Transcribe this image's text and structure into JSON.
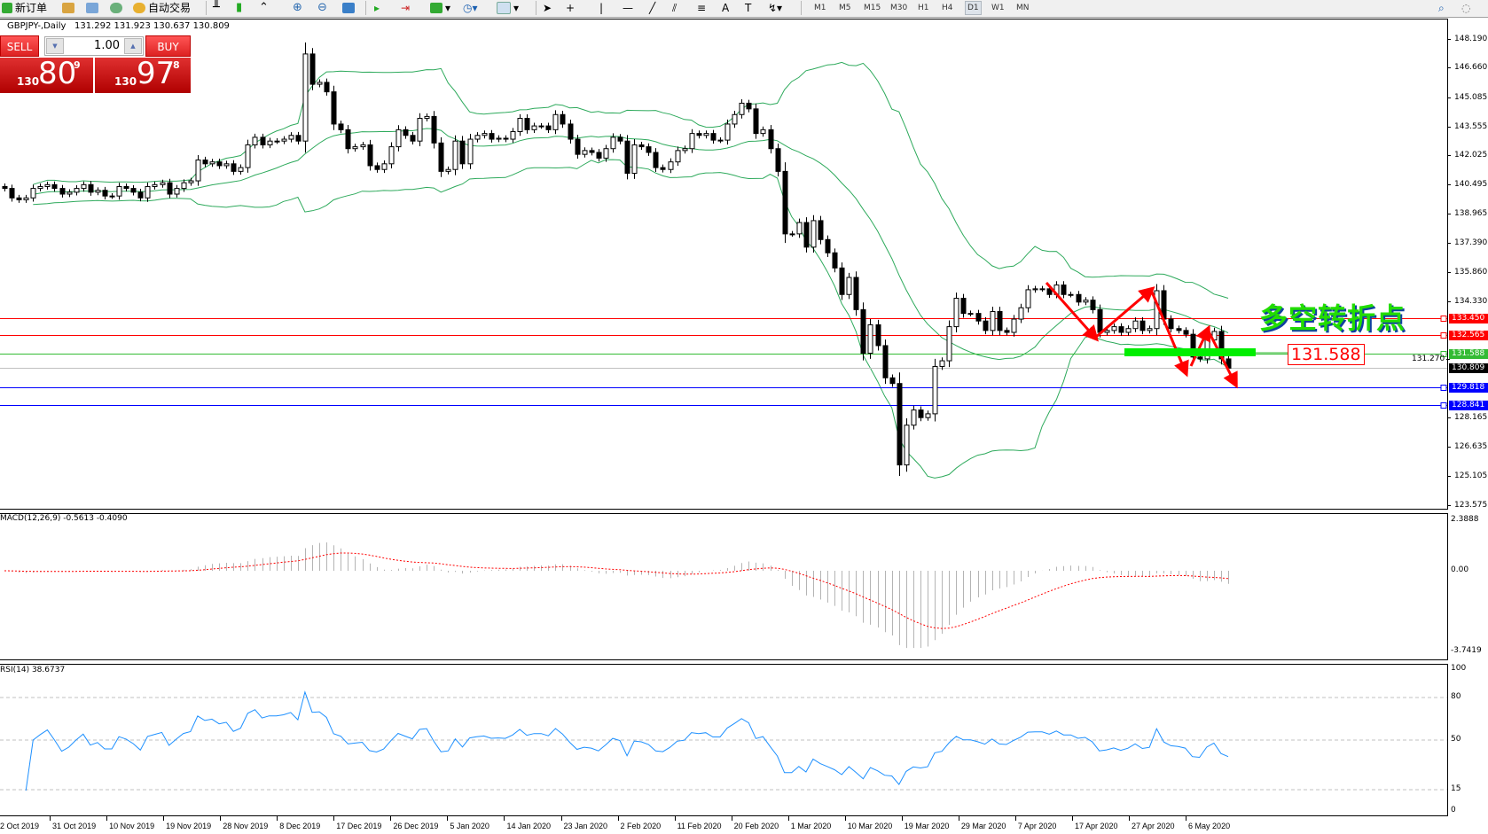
{
  "toolbar": {
    "new_order": "新订单",
    "auto_trading": "自动交易",
    "timeframes": [
      "M1",
      "M5",
      "M15",
      "M30",
      "H1",
      "H4",
      "D1",
      "W1",
      "MN"
    ],
    "active_timeframe": "D1"
  },
  "chart_header": {
    "symbol": "GBPJPY-,Daily",
    "ohlc": "131.292 131.923 130.637 130.809"
  },
  "trade_panel": {
    "sell_label": "SELL",
    "buy_label": "BUY",
    "lot": "1.00",
    "sell_price": {
      "prefix": "130",
      "big": "80",
      "sup": "9"
    },
    "buy_price": {
      "prefix": "130",
      "big": "97",
      "sup": "8"
    }
  },
  "price_axis": {
    "ticks": [
      "148.190",
      "146.660",
      "145.085",
      "143.555",
      "142.025",
      "140.495",
      "138.965",
      "137.390",
      "135.860",
      "134.330",
      "131.270",
      "128.165",
      "126.635",
      "125.105",
      "123.575"
    ]
  },
  "levels": [
    {
      "price": "133.450",
      "color": "#ff0000"
    },
    {
      "price": "132.565",
      "color": "#ff0000"
    },
    {
      "price": "131.588",
      "color": "#33bb33"
    },
    {
      "price": "130.809",
      "color": "#000000",
      "line_color": "#c0c0c0"
    },
    {
      "price": "129.818",
      "color": "#0000ff"
    },
    {
      "price": "128.841",
      "color": "#0000ff"
    }
  ],
  "annotation": {
    "text": "多空转折点",
    "price_label": "131.588",
    "arrow_color": "#ff0000",
    "zone_color": "#00ee00"
  },
  "macd": {
    "label": "MACD(12,26,9) -0.5613 -0.4090",
    "ticks": [
      "2.3888",
      "0.00",
      "-3.7419"
    ]
  },
  "rsi": {
    "label": "RSI(14) 38.6737",
    "ticks": [
      "100",
      "80",
      "50",
      "15",
      "0"
    ]
  },
  "time_axis": {
    "labels": [
      "22 Oct 2019",
      "31 Oct 2019",
      "10 Nov 2019",
      "19 Nov 2019",
      "28 Nov 2019",
      "8 Dec 2019",
      "17 Dec 2019",
      "26 Dec 2019",
      "5 Jan 2020",
      "14 Jan 2020",
      "23 Jan 2020",
      "2 Feb 2020",
      "11 Feb 2020",
      "20 Feb 2020",
      "1 Mar 2020",
      "10 Mar 2020",
      "19 Mar 2020",
      "29 Mar 2020",
      "7 Apr 2020",
      "17 Apr 2020",
      "27 Apr 2020",
      "6 May 2020"
    ]
  },
  "chart_data": {
    "type": "candlestick",
    "symbol": "GBPJPY",
    "timeframe": "Daily",
    "ylim": [
      123.575,
      148.19
    ],
    "close": [
      140.3,
      139.8,
      139.7,
      139.8,
      140.3,
      140.4,
      140.5,
      140.3,
      140.0,
      140.1,
      140.3,
      140.5,
      140.1,
      140.2,
      139.9,
      139.9,
      140.4,
      140.3,
      140.1,
      139.8,
      140.4,
      140.5,
      140.6,
      140.0,
      140.3,
      140.6,
      140.7,
      141.8,
      141.6,
      141.7,
      141.5,
      141.6,
      141.2,
      141.4,
      142.6,
      143.0,
      142.6,
      142.8,
      142.8,
      142.9,
      143.1,
      142.8,
      147.4,
      145.8,
      145.9,
      145.4,
      143.7,
      143.4,
      142.4,
      142.5,
      142.6,
      141.5,
      141.3,
      141.6,
      142.5,
      143.4,
      143.1,
      142.8,
      144.0,
      144.1,
      142.7,
      141.2,
      141.3,
      142.8,
      141.6,
      142.9,
      143.1,
      143.2,
      142.9,
      142.95,
      142.9,
      143.3,
      144.0,
      143.4,
      143.6,
      143.6,
      143.4,
      144.2,
      143.7,
      142.9,
      142.1,
      142.3,
      142.2,
      141.9,
      142.4,
      143.0,
      142.8,
      141.1,
      142.6,
      142.5,
      142.2,
      141.4,
      141.3,
      141.7,
      142.3,
      142.4,
      143.2,
      143.1,
      143.2,
      142.85,
      142.85,
      143.7,
      144.2,
      144.8,
      144.5,
      143.2,
      143.4,
      142.4,
      141.2,
      137.9,
      137.9,
      138.5,
      137.2,
      138.6,
      137.6,
      136.9,
      136.1,
      134.7,
      135.6,
      133.9,
      131.6,
      133.1,
      132.0,
      130.3,
      130.0,
      125.7,
      127.8,
      128.6,
      128.2,
      128.4,
      130.9,
      131.2,
      133.0,
      134.5,
      133.7,
      133.7,
      133.3,
      132.8,
      133.8,
      132.8,
      132.7,
      133.4,
      134.0,
      134.95,
      135.0,
      135.0,
      134.7,
      135.2,
      134.7,
      134.7,
      134.3,
      134.4,
      133.9,
      132.7,
      132.8,
      133.0,
      132.7,
      132.9,
      133.3,
      132.8,
      132.9,
      134.9,
      133.4,
      132.9,
      132.8,
      132.6,
      131.4,
      131.3,
      132.3,
      132.75,
      131.3,
      130.809
    ],
    "indicators": {
      "bollinger": {
        "period": 20,
        "deviation": 2,
        "color": "#2eaa5c"
      },
      "macd": {
        "fast": 12,
        "slow": 26,
        "signal": 9,
        "ylim": [
          -3.7419,
          2.3888
        ],
        "hist_color": "#b4b4b4",
        "signal_color": "#ff0000"
      },
      "rsi": {
        "period": 14,
        "levels": [
          80,
          50,
          15
        ],
        "ylim": [
          0,
          100
        ],
        "color": "#1e90ff"
      }
    },
    "bull_color": "#ffffff",
    "bear_color": "#000000"
  }
}
